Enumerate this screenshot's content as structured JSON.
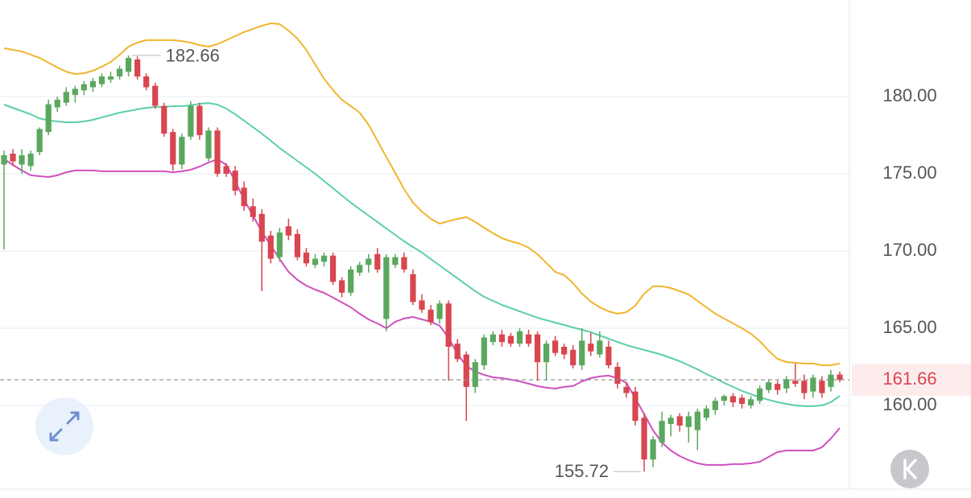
{
  "chart_data": {
    "type": "candlestick",
    "open": [
      175.6,
      176.3,
      175.6,
      175.5,
      176.4,
      177.7,
      179.3,
      179.6,
      180.1,
      180.4,
      180.6,
      180.8,
      181.1,
      181.3,
      181.6,
      182.4,
      181.3,
      180.7,
      179.4,
      177.7,
      175.6,
      177.4,
      179.4,
      176.0,
      177.8,
      175.5,
      175.2,
      174.1,
      172.9,
      172.4,
      171.0,
      169.6,
      171.6,
      171.1,
      169.9,
      169.1,
      169.3,
      169.7,
      168.1,
      167.3,
      168.6,
      169.1,
      169.8,
      165.6,
      169.1,
      169.6,
      168.5,
      166.8,
      166.2,
      165.6,
      166.6,
      164.0,
      163.3,
      161.2,
      162.6,
      164.1,
      164.6,
      164.5,
      164.0,
      164.6,
      164.6,
      162.8,
      164.2,
      163.8,
      163.6,
      162.6,
      164.0,
      163.3,
      163.8,
      162.5,
      161.2,
      160.9,
      159.2,
      156.5,
      157.6,
      158.8,
      159.3,
      158.6,
      158.4,
      159.2,
      159.7,
      160.3,
      160.6,
      160.5,
      160.0,
      160.3,
      161.0,
      161.4,
      161.1,
      161.6,
      161.6,
      160.9,
      161.6,
      161.2,
      162.0
    ],
    "high": [
      176.5,
      176.6,
      176.6,
      176.5,
      178.0,
      179.8,
      180.0,
      180.6,
      180.7,
      181.0,
      181.2,
      181.5,
      181.6,
      182.0,
      182.66,
      182.6,
      181.5,
      180.9,
      179.6,
      177.9,
      177.6,
      179.7,
      179.6,
      178.0,
      178.0,
      175.7,
      175.5,
      174.5,
      173.4,
      172.7,
      171.3,
      171.5,
      172.1,
      171.4,
      170.2,
      169.8,
      169.9,
      169.9,
      168.3,
      169.0,
      169.3,
      169.8,
      170.2,
      169.8,
      169.8,
      169.9,
      168.8,
      167.2,
      166.5,
      166.8,
      166.8,
      164.3,
      163.5,
      163.0,
      164.6,
      164.8,
      164.9,
      164.7,
      165.0,
      164.9,
      164.8,
      164.2,
      164.5,
      164.0,
      163.9,
      165.0,
      164.7,
      164.8,
      164.2,
      162.8,
      161.5,
      161.2,
      159.5,
      158.0,
      159.6,
      159.4,
      159.5,
      159.6,
      159.8,
      160.0,
      160.5,
      160.7,
      160.8,
      160.7,
      160.6,
      161.3,
      161.7,
      161.6,
      161.9,
      162.7,
      162.0,
      162.0,
      161.9,
      162.3,
      162.2
    ],
    "low": [
      170.1,
      175.5,
      175.0,
      175.2,
      176.2,
      177.5,
      179.0,
      179.4,
      179.6,
      180.1,
      180.3,
      180.6,
      180.9,
      181.1,
      181.3,
      181.1,
      180.4,
      179.2,
      177.4,
      175.2,
      175.3,
      177.2,
      177.2,
      175.8,
      174.8,
      174.8,
      173.6,
      172.6,
      171.9,
      167.4,
      169.2,
      169.3,
      170.7,
      169.4,
      169.0,
      168.9,
      169.0,
      167.8,
      167.0,
      167.1,
      168.4,
      168.6,
      168.6,
      164.8,
      168.9,
      168.6,
      166.5,
      166.0,
      165.2,
      165.3,
      161.6,
      162.8,
      159.0,
      160.8,
      162.3,
      163.9,
      163.8,
      163.8,
      163.8,
      163.8,
      161.6,
      161.6,
      163.2,
      163.0,
      162.4,
      162.3,
      163.2,
      163.1,
      162.4,
      161.1,
      160.5,
      158.7,
      155.72,
      156.0,
      157.3,
      158.0,
      158.3,
      157.6,
      157.1,
      159.0,
      159.4,
      160.0,
      159.9,
      159.8,
      159.8,
      160.1,
      160.8,
      160.7,
      160.8,
      161.2,
      160.4,
      160.5,
      160.5,
      160.9,
      161.5
    ],
    "close": [
      176.2,
      175.8,
      176.2,
      176.3,
      177.9,
      179.5,
      179.8,
      180.3,
      180.5,
      180.8,
      181.0,
      181.3,
      181.3,
      181.8,
      182.5,
      181.3,
      180.6,
      179.4,
      177.6,
      175.6,
      177.4,
      179.4,
      177.5,
      177.8,
      175.0,
      175.0,
      173.9,
      172.9,
      172.2,
      170.6,
      169.5,
      171.2,
      171.0,
      169.6,
      169.2,
      169.5,
      169.7,
      168.0,
      167.3,
      168.8,
      169.1,
      169.5,
      168.8,
      169.6,
      169.6,
      168.8,
      166.7,
      166.2,
      165.4,
      166.6,
      163.8,
      163.0,
      161.2,
      162.8,
      164.4,
      164.6,
      164.1,
      164.0,
      164.8,
      164.0,
      162.8,
      164.0,
      163.4,
      163.3,
      162.6,
      164.2,
      163.5,
      164.2,
      162.6,
      161.4,
      160.8,
      159.0,
      156.5,
      157.8,
      159.0,
      159.2,
      158.7,
      159.3,
      159.6,
      159.8,
      160.3,
      160.6,
      160.2,
      160.1,
      160.4,
      161.1,
      161.5,
      161.0,
      161.7,
      161.4,
      160.8,
      161.8,
      160.8,
      162.0,
      161.66
    ],
    "up_color": "#5aa85e",
    "down_color": "#d8464f",
    "overlays": [
      {
        "color": "#f0b52e",
        "values": [
          183.13,
          183.02,
          182.92,
          182.71,
          182.5,
          182.19,
          181.88,
          181.61,
          181.46,
          181.51,
          181.67,
          181.93,
          182.24,
          182.71,
          183.23,
          183.49,
          183.65,
          183.65,
          183.65,
          183.65,
          183.59,
          183.49,
          183.33,
          183.23,
          183.39,
          183.65,
          183.91,
          184.17,
          184.38,
          184.58,
          184.74,
          184.69,
          184.27,
          183.75,
          183.02,
          182.08,
          181.15,
          180.42,
          179.79,
          179.38,
          178.96,
          178.18,
          177.14,
          176.09,
          175.05,
          174.01,
          173.13,
          172.55,
          172.08,
          171.77,
          171.93,
          172.08,
          172.19,
          171.88,
          171.51,
          171.15,
          170.83,
          170.63,
          170.47,
          170.21,
          169.79,
          169.22,
          168.65,
          168.44,
          167.92,
          167.24,
          166.72,
          166.35,
          166.09,
          165.94,
          166.04,
          166.46,
          167.24,
          167.71,
          167.71,
          167.6,
          167.4,
          167.19,
          166.77,
          166.35,
          165.94,
          165.63,
          165.31,
          165.0,
          164.64,
          164.17,
          163.54,
          163.02,
          162.81,
          162.76,
          162.71,
          162.71,
          162.6,
          162.6,
          162.71
        ]
      },
      {
        "color": "#5ccfa8",
        "values": [
          179.48,
          179.27,
          179.06,
          178.85,
          178.59,
          178.44,
          178.39,
          178.33,
          178.33,
          178.39,
          178.49,
          178.65,
          178.8,
          178.96,
          179.06,
          179.17,
          179.27,
          179.32,
          179.32,
          179.38,
          179.38,
          179.43,
          179.53,
          179.58,
          179.48,
          179.22,
          178.85,
          178.44,
          178.02,
          177.6,
          177.14,
          176.67,
          176.25,
          175.83,
          175.42,
          175.0,
          174.53,
          174.06,
          173.59,
          173.13,
          172.71,
          172.29,
          171.88,
          171.46,
          171.04,
          170.63,
          170.26,
          169.9,
          169.48,
          169.06,
          168.65,
          168.23,
          167.81,
          167.4,
          167.03,
          166.77,
          166.51,
          166.3,
          166.09,
          165.89,
          165.68,
          165.52,
          165.36,
          165.21,
          165.05,
          164.9,
          164.74,
          164.53,
          164.32,
          164.11,
          163.91,
          163.75,
          163.59,
          163.44,
          163.28,
          163.07,
          162.86,
          162.6,
          162.34,
          162.03,
          161.77,
          161.46,
          161.2,
          160.94,
          160.73,
          160.52,
          160.36,
          160.21,
          160.1,
          160.0,
          159.95,
          159.95,
          160.0,
          160.21,
          160.63
        ]
      },
      {
        "color": "#d050c0",
        "values": [
          175.94,
          175.57,
          175.21,
          174.9,
          174.84,
          174.79,
          174.9,
          175.1,
          175.21,
          175.21,
          175.21,
          175.16,
          175.16,
          175.16,
          175.16,
          175.16,
          175.16,
          175.16,
          175.16,
          175.1,
          175.16,
          175.26,
          175.47,
          175.73,
          175.94,
          175.57,
          174.53,
          173.33,
          172.29,
          171.25,
          170.36,
          169.48,
          168.65,
          168.13,
          167.76,
          167.5,
          167.29,
          166.98,
          166.67,
          166.35,
          165.94,
          165.57,
          165.31,
          165.0,
          165.42,
          165.63,
          165.73,
          165.57,
          165.42,
          165.16,
          164.38,
          163.33,
          162.55,
          162.19,
          161.98,
          161.82,
          161.77,
          161.67,
          161.56,
          161.41,
          161.25,
          161.15,
          161.09,
          161.2,
          161.25,
          161.56,
          161.77,
          161.88,
          161.93,
          161.77,
          161.46,
          160.47,
          159.43,
          158.39,
          157.6,
          157.08,
          156.72,
          156.46,
          156.25,
          156.15,
          156.15,
          156.15,
          156.2,
          156.2,
          156.25,
          156.35,
          156.67,
          156.98,
          157.08,
          157.08,
          157.08,
          157.08,
          157.29,
          157.86,
          158.54
        ]
      }
    ],
    "ylim": [
      154.58,
      186.25
    ],
    "yticks": [
      {
        "value": 160,
        "label": "160.00"
      },
      {
        "value": 165,
        "label": "165.00"
      },
      {
        "value": 170,
        "label": "170.00"
      },
      {
        "value": 175,
        "label": "175.00"
      },
      {
        "value": 180,
        "label": "180.00"
      }
    ],
    "grid": true,
    "last_price": {
      "value": 161.66,
      "label": "161.66"
    },
    "max_label": {
      "value": 182.66,
      "label": "182.66"
    },
    "min_label": {
      "value": 155.72,
      "label": "155.72"
    }
  }
}
